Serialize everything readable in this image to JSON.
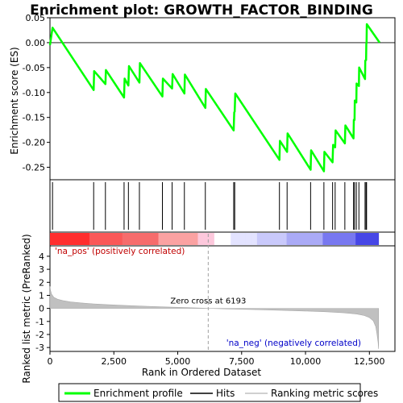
{
  "chart_data": {
    "type": "line",
    "title": "Enrichment plot: GROWTH_FACTOR_BINDING",
    "top_panel": {
      "ylabel": "Enrichment score (ES)",
      "ylim": [
        -0.275,
        0.05
      ],
      "yticks": [
        0.05,
        0.0,
        -0.05,
        -0.1,
        -0.15,
        -0.2,
        -0.25
      ],
      "ytick_labels": [
        "0.05",
        "0.00",
        "-0.05",
        "-0.10",
        "-0.15",
        "-0.20",
        "-0.25"
      ],
      "series_name": "Enrichment profile",
      "line_color": "#00ff00",
      "profile": [
        [
          0,
          -0.005
        ],
        [
          100,
          0.03
        ],
        [
          1710,
          -0.095
        ],
        [
          1730,
          -0.057
        ],
        [
          2170,
          -0.083
        ],
        [
          2190,
          -0.055
        ],
        [
          2900,
          -0.11
        ],
        [
          2920,
          -0.072
        ],
        [
          3070,
          -0.086
        ],
        [
          3090,
          -0.047
        ],
        [
          3500,
          -0.08
        ],
        [
          3520,
          -0.041
        ],
        [
          4400,
          -0.108
        ],
        [
          4420,
          -0.072
        ],
        [
          4780,
          -0.092
        ],
        [
          4800,
          -0.063
        ],
        [
          5260,
          -0.102
        ],
        [
          5280,
          -0.064
        ],
        [
          6080,
          -0.131
        ],
        [
          6100,
          -0.093
        ],
        [
          7190,
          -0.176
        ],
        [
          7210,
          -0.14
        ],
        [
          7230,
          -0.138
        ],
        [
          7250,
          -0.102
        ],
        [
          8980,
          -0.235
        ],
        [
          9000,
          -0.197
        ],
        [
          9280,
          -0.219
        ],
        [
          9300,
          -0.182
        ],
        [
          10200,
          -0.255
        ],
        [
          10220,
          -0.216
        ],
        [
          10720,
          -0.258
        ],
        [
          10740,
          -0.219
        ],
        [
          11060,
          -0.24
        ],
        [
          11080,
          -0.205
        ],
        [
          11160,
          -0.21
        ],
        [
          11180,
          -0.176
        ],
        [
          11540,
          -0.202
        ],
        [
          11560,
          -0.166
        ],
        [
          11880,
          -0.192
        ],
        [
          11890,
          -0.155
        ],
        [
          11920,
          -0.155
        ],
        [
          11930,
          -0.116
        ],
        [
          11990,
          -0.12
        ],
        [
          12000,
          -0.082
        ],
        [
          12090,
          -0.087
        ],
        [
          12100,
          -0.05
        ],
        [
          12330,
          -0.073
        ],
        [
          12340,
          -0.036
        ],
        [
          12370,
          -0.035
        ],
        [
          12380,
          -0.002
        ],
        [
          12390,
          0.0
        ],
        [
          12400,
          0.037
        ],
        [
          12900,
          0.0
        ]
      ]
    },
    "hits": {
      "series_name": "Hits",
      "positions": [
        100,
        1710,
        2170,
        2900,
        3070,
        3500,
        4400,
        4780,
        5260,
        6080,
        7190,
        7230,
        8980,
        9280,
        10200,
        10720,
        11060,
        11160,
        11540,
        11880,
        11920,
        11990,
        12090,
        12330,
        12370,
        12390
      ]
    },
    "colorbar": {
      "label_pos": "'na_pos' (positively correlated)",
      "label_neg": "'na_neg' (negatively correlated)"
    },
    "bottom_panel": {
      "ylabel": "Ranked list metric (PreRanked)",
      "xlabel": "Rank in Ordered Dataset",
      "ylim": [
        -3.3,
        4.8
      ],
      "yticks": [
        4,
        3,
        2,
        1,
        0,
        -1,
        -2,
        -3
      ],
      "ytick_labels": [
        "4",
        "3",
        "2",
        "1",
        "0",
        "-1",
        "-2",
        "-3"
      ],
      "series_name": "Ranking metric scores",
      "fill_color": "#c0c0c0",
      "metric": [
        [
          0,
          1.7
        ],
        [
          20,
          1.4
        ],
        [
          60,
          1.1
        ],
        [
          150,
          0.85
        ],
        [
          300,
          0.7
        ],
        [
          500,
          0.6
        ],
        [
          800,
          0.5
        ],
        [
          1200,
          0.42
        ],
        [
          1700,
          0.35
        ],
        [
          2300,
          0.28
        ],
        [
          3000,
          0.22
        ],
        [
          3800,
          0.16
        ],
        [
          4600,
          0.11
        ],
        [
          5400,
          0.06
        ],
        [
          6193,
          0.0
        ],
        [
          7000,
          -0.04
        ],
        [
          8000,
          -0.09
        ],
        [
          9000,
          -0.14
        ],
        [
          10000,
          -0.2
        ],
        [
          10800,
          -0.26
        ],
        [
          11500,
          -0.34
        ],
        [
          12000,
          -0.43
        ],
        [
          12300,
          -0.55
        ],
        [
          12500,
          -0.7
        ],
        [
          12650,
          -0.95
        ],
        [
          12750,
          -1.4
        ],
        [
          12800,
          -2.0
        ],
        [
          12840,
          -2.6
        ],
        [
          12860,
          -3.1
        ]
      ],
      "zero_cross_label": "Zero cross at 6193",
      "zero_cross": 6193
    },
    "xlim": [
      0,
      13500
    ],
    "xticks": [
      0,
      2500,
      5000,
      7500,
      10000,
      12500
    ],
    "xtick_labels": [
      "0",
      "2,500",
      "5,000",
      "7,500",
      "10,000",
      "12,500"
    ],
    "legend": {
      "placement": "bottom",
      "items": [
        {
          "label": "Enrichment profile",
          "color": "#00ff00"
        },
        {
          "label": "Hits",
          "color": "#000000"
        },
        {
          "label": "Ranking metric scores",
          "color": "#c0c0c0"
        }
      ]
    }
  }
}
